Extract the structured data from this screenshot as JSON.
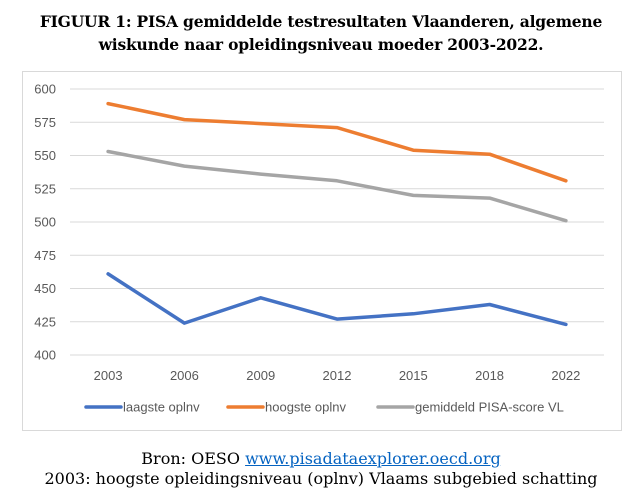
{
  "title_line1": "FIGUUR 1: PISA gemiddelde testresultaten Vlaanderen, algemene",
  "title_line2": "wiskunde naar opleidingsniveau moeder 2003-2022.",
  "source": {
    "prefix": "Bron: OESO ",
    "link": "www.pisadataexplorer.oecd.org"
  },
  "note": "2003: hoogste opleidingsniveau (oplnv) Vlaams subgebied schatting",
  "colors": {
    "laagste": "#4472C4",
    "hoogste": "#ED7D31",
    "gemiddeld": "#A5A5A5",
    "grid": "#d9d9d9",
    "text": "#595959"
  },
  "chart_data": {
    "type": "line",
    "title": "FIGUUR 1: PISA gemiddelde testresultaten Vlaanderen, algemene wiskunde naar opleidingsniveau moeder 2003-2022.",
    "xlabel": "",
    "ylabel": "",
    "categories": [
      "2003",
      "2006",
      "2009",
      "2012",
      "2015",
      "2018",
      "2022"
    ],
    "ylim": [
      400,
      600
    ],
    "yticks": [
      400,
      425,
      450,
      475,
      500,
      525,
      550,
      575,
      600
    ],
    "grid": true,
    "legend_position": "bottom",
    "series": [
      {
        "name": "laagste oplnv",
        "color": "#4472C4",
        "values": [
          461,
          424,
          443,
          427,
          431,
          438,
          423
        ]
      },
      {
        "name": "hoogste oplnv",
        "color": "#ED7D31",
        "values": [
          589,
          577,
          574,
          571,
          554,
          551,
          531
        ]
      },
      {
        "name": "gemiddeld PISA-score VL",
        "color": "#A5A5A5",
        "values": [
          553,
          542,
          536,
          531,
          520,
          518,
          501
        ]
      }
    ]
  }
}
